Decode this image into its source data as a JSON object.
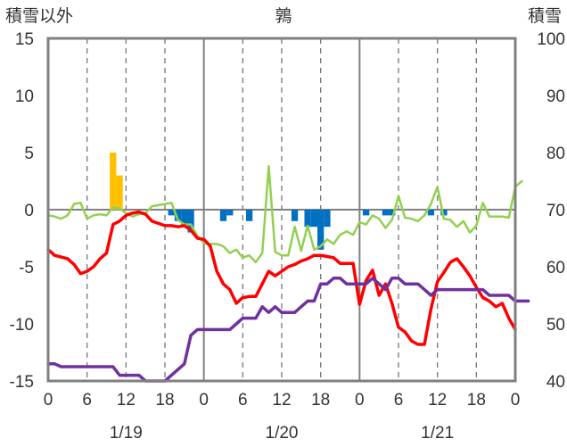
{
  "chart_data": {
    "type": "line",
    "title": "鶉",
    "ylabel_left": "積雪以外",
    "ylabel_right": "積雪",
    "ylim_left": [
      -15,
      15
    ],
    "yticks_left": [
      15,
      10,
      5,
      0,
      -5,
      -10,
      -15
    ],
    "ylim_right": [
      40,
      100
    ],
    "yticks_right": [
      100,
      90,
      80,
      70,
      60,
      50,
      40
    ],
    "xlim": [
      0,
      72
    ],
    "x_tick_labels": [
      "0",
      "6",
      "12",
      "18",
      "0",
      "6",
      "12",
      "18",
      "0",
      "6",
      "12",
      "18",
      "0"
    ],
    "x_tick_positions": [
      0,
      6,
      12,
      18,
      24,
      30,
      36,
      42,
      48,
      54,
      60,
      66,
      72
    ],
    "date_labels": [
      {
        "label": "1/19",
        "x": 12
      },
      {
        "label": "1/20",
        "x": 36
      },
      {
        "label": "1/21",
        "x": 60
      }
    ],
    "grid": {
      "vertical_dashed_every_hours": 6,
      "vertical_solid_at": [
        24,
        48
      ],
      "zero_line": true
    },
    "colors": {
      "snowfall": "#ffc000",
      "negative_bars": "#0070c0",
      "red_series": "#ff0000",
      "green_series": "#92d050",
      "purple_series": "#7030a0",
      "frame": "#808080"
    },
    "bars_snowfall": [
      {
        "x": 10,
        "value": 5
      },
      {
        "x": 11,
        "value": 3
      }
    ],
    "bars_negative": [
      {
        "x": 19,
        "value": -0.5
      },
      {
        "x": 20,
        "value": -1.0
      },
      {
        "x": 21,
        "value": -1.5
      },
      {
        "x": 22,
        "value": -2.0
      },
      {
        "x": 27,
        "value": -1.0
      },
      {
        "x": 28,
        "value": -0.5
      },
      {
        "x": 31,
        "value": -1.0
      },
      {
        "x": 38,
        "value": -1.0
      },
      {
        "x": 40,
        "value": -1.5
      },
      {
        "x": 41,
        "value": -1.5
      },
      {
        "x": 42,
        "value": -3.5
      },
      {
        "x": 43,
        "value": -1.5
      },
      {
        "x": 49,
        "value": -0.5
      },
      {
        "x": 52,
        "value": -0.5
      },
      {
        "x": 53,
        "value": -0.5
      },
      {
        "x": 59,
        "value": -0.5
      },
      {
        "x": 61,
        "value": -0.5
      }
    ],
    "series": [
      {
        "axis": "left",
        "color": "#ff0000",
        "width": 3.5,
        "points": [
          [
            0,
            -3.5
          ],
          [
            1,
            -4
          ],
          [
            3,
            -4.3
          ],
          [
            4,
            -4.8
          ],
          [
            5,
            -5.6
          ],
          [
            6,
            -5.4
          ],
          [
            7,
            -5.0
          ],
          [
            8,
            -4.3
          ],
          [
            9,
            -3.8
          ],
          [
            10,
            -1.3
          ],
          [
            11,
            -1.0
          ],
          [
            12,
            -0.5
          ],
          [
            13,
            -0.3
          ],
          [
            14,
            -0.2
          ],
          [
            15,
            -0.4
          ],
          [
            16,
            -1.0
          ],
          [
            17,
            -1.2
          ],
          [
            18,
            -1.4
          ],
          [
            19,
            -1.4
          ],
          [
            20,
            -1.5
          ],
          [
            21,
            -1.4
          ],
          [
            22,
            -1.8
          ],
          [
            23,
            -2.5
          ],
          [
            24,
            -2.6
          ],
          [
            25,
            -3.2
          ],
          [
            26,
            -5.4
          ],
          [
            27,
            -6.5
          ],
          [
            28,
            -7.0
          ],
          [
            29,
            -8.2
          ],
          [
            30,
            -7.7
          ],
          [
            31,
            -7.6
          ],
          [
            32,
            -7.6
          ],
          [
            33,
            -6.5
          ],
          [
            34,
            -5.4
          ],
          [
            35,
            -5.8
          ],
          [
            36,
            -5.4
          ],
          [
            37,
            -5.0
          ],
          [
            38,
            -4.8
          ],
          [
            39,
            -4.5
          ],
          [
            40,
            -4.3
          ],
          [
            41,
            -4.0
          ],
          [
            42,
            -4.0
          ],
          [
            43,
            -4.1
          ],
          [
            44,
            -4.2
          ],
          [
            45,
            -4.7
          ],
          [
            46,
            -4.7
          ],
          [
            47,
            -4.7
          ],
          [
            48,
            -8.3
          ],
          [
            49,
            -6.2
          ],
          [
            50,
            -5.3
          ],
          [
            51,
            -7.5
          ],
          [
            52,
            -6.5
          ],
          [
            53,
            -8.2
          ],
          [
            54,
            -10.3
          ],
          [
            55,
            -10.7
          ],
          [
            56,
            -11.5
          ],
          [
            57,
            -11.8
          ],
          [
            58,
            -11.8
          ],
          [
            59,
            -8.7
          ],
          [
            60,
            -6.3
          ],
          [
            61,
            -5.5
          ],
          [
            62,
            -4.6
          ],
          [
            63,
            -4.3
          ],
          [
            64,
            -5.0
          ],
          [
            65,
            -5.8
          ],
          [
            66,
            -6.8
          ],
          [
            67,
            -7.7
          ],
          [
            68,
            -8.0
          ],
          [
            69,
            -8.5
          ],
          [
            70,
            -8.2
          ],
          [
            71,
            -9.5
          ],
          [
            72,
            -10.5
          ]
        ]
      },
      {
        "axis": "left",
        "color": "#92d050",
        "width": 2.5,
        "points": [
          [
            0,
            -0.5
          ],
          [
            1,
            -0.6
          ],
          [
            2,
            -0.8
          ],
          [
            3,
            -0.5
          ],
          [
            4,
            0.5
          ],
          [
            5,
            0.6
          ],
          [
            6,
            -0.8
          ],
          [
            7,
            -0.5
          ],
          [
            8,
            -0.4
          ],
          [
            9,
            -0.5
          ],
          [
            10,
            0.2
          ],
          [
            11,
            0.1
          ],
          [
            12,
            -0.3
          ],
          [
            13,
            -0.6
          ],
          [
            14,
            -0.4
          ],
          [
            15,
            -0.3
          ],
          [
            16,
            0.3
          ],
          [
            17,
            0.4
          ],
          [
            18,
            0.5
          ],
          [
            19,
            0.6
          ],
          [
            20,
            -0.9
          ],
          [
            21,
            -1.3
          ],
          [
            22,
            -1.3
          ],
          [
            23,
            -2.3
          ],
          [
            24,
            -2.9
          ],
          [
            25,
            -3.0
          ],
          [
            26,
            -3.0
          ],
          [
            27,
            -3.2
          ],
          [
            28,
            -3.8
          ],
          [
            29,
            -3.5
          ],
          [
            30,
            -4.2
          ],
          [
            31,
            -4.0
          ],
          [
            32,
            -4.6
          ],
          [
            33,
            -3.8
          ],
          [
            34,
            3.8
          ],
          [
            35,
            -3.7
          ],
          [
            36,
            -4.0
          ],
          [
            37,
            -4.0
          ],
          [
            38,
            -1.5
          ],
          [
            39,
            -3.6
          ],
          [
            40,
            -1.4
          ],
          [
            41,
            -3.5
          ],
          [
            42,
            -3.2
          ],
          [
            43,
            -2.6
          ],
          [
            44,
            -3.0
          ],
          [
            45,
            -2.2
          ],
          [
            46,
            -1.9
          ],
          [
            47,
            -2.2
          ],
          [
            48,
            -1.1
          ],
          [
            49,
            -1.3
          ],
          [
            50,
            -0.5
          ],
          [
            51,
            -0.8
          ],
          [
            52,
            -1.6
          ],
          [
            53,
            -0.9
          ],
          [
            54,
            1.2
          ],
          [
            55,
            -0.7
          ],
          [
            56,
            -0.8
          ],
          [
            57,
            -1.0
          ],
          [
            58,
            -0.5
          ],
          [
            59,
            0.5
          ],
          [
            60,
            2.0
          ],
          [
            61,
            -0.8
          ],
          [
            62,
            -0.9
          ],
          [
            63,
            -1.5
          ],
          [
            64,
            -1.0
          ],
          [
            65,
            -2.0
          ],
          [
            66,
            -1.4
          ],
          [
            67,
            0.6
          ],
          [
            68,
            -0.6
          ],
          [
            69,
            -0.6
          ],
          [
            70,
            -0.6
          ],
          [
            71,
            -0.7
          ],
          [
            72,
            2.0
          ],
          [
            73,
            2.5
          ]
        ]
      },
      {
        "axis": "right",
        "color": "#7030a0",
        "width": 3.5,
        "points": [
          [
            0,
            43
          ],
          [
            1,
            43
          ],
          [
            2,
            42.5
          ],
          [
            3,
            42.5
          ],
          [
            4,
            42.5
          ],
          [
            5,
            42.5
          ],
          [
            6,
            42.5
          ],
          [
            7,
            42.5
          ],
          [
            8,
            42.5
          ],
          [
            9,
            42.5
          ],
          [
            10,
            42.5
          ],
          [
            11,
            41
          ],
          [
            12,
            41
          ],
          [
            13,
            41
          ],
          [
            14,
            41
          ],
          [
            15,
            40
          ],
          [
            16,
            40
          ],
          [
            17,
            40
          ],
          [
            18,
            40
          ],
          [
            19,
            41
          ],
          [
            20,
            42
          ],
          [
            21,
            43
          ],
          [
            22,
            48
          ],
          [
            23,
            49
          ],
          [
            24,
            49
          ],
          [
            25,
            49
          ],
          [
            26,
            49
          ],
          [
            27,
            49
          ],
          [
            28,
            49
          ],
          [
            29,
            50
          ],
          [
            30,
            51
          ],
          [
            31,
            51
          ],
          [
            32,
            51
          ],
          [
            33,
            53
          ],
          [
            34,
            52
          ],
          [
            35,
            53
          ],
          [
            36,
            52
          ],
          [
            37,
            52
          ],
          [
            38,
            52
          ],
          [
            39,
            53
          ],
          [
            40,
            54
          ],
          [
            41,
            54
          ],
          [
            42,
            57
          ],
          [
            43,
            57
          ],
          [
            44,
            58
          ],
          [
            45,
            58
          ],
          [
            46,
            57
          ],
          [
            47,
            57
          ],
          [
            48,
            57
          ],
          [
            49,
            57
          ],
          [
            50,
            58
          ],
          [
            51,
            57
          ],
          [
            52,
            56
          ],
          [
            53,
            58
          ],
          [
            54,
            58
          ],
          [
            55,
            57
          ],
          [
            56,
            57
          ],
          [
            57,
            57
          ],
          [
            58,
            56
          ],
          [
            59,
            55
          ],
          [
            60,
            56
          ],
          [
            61,
            56
          ],
          [
            62,
            56
          ],
          [
            63,
            56
          ],
          [
            64,
            56
          ],
          [
            65,
            56
          ],
          [
            66,
            56
          ],
          [
            67,
            56
          ],
          [
            68,
            55
          ],
          [
            69,
            55
          ],
          [
            70,
            55
          ],
          [
            71,
            55
          ],
          [
            72,
            54
          ],
          [
            73,
            54
          ],
          [
            74,
            54
          ]
        ]
      }
    ]
  }
}
